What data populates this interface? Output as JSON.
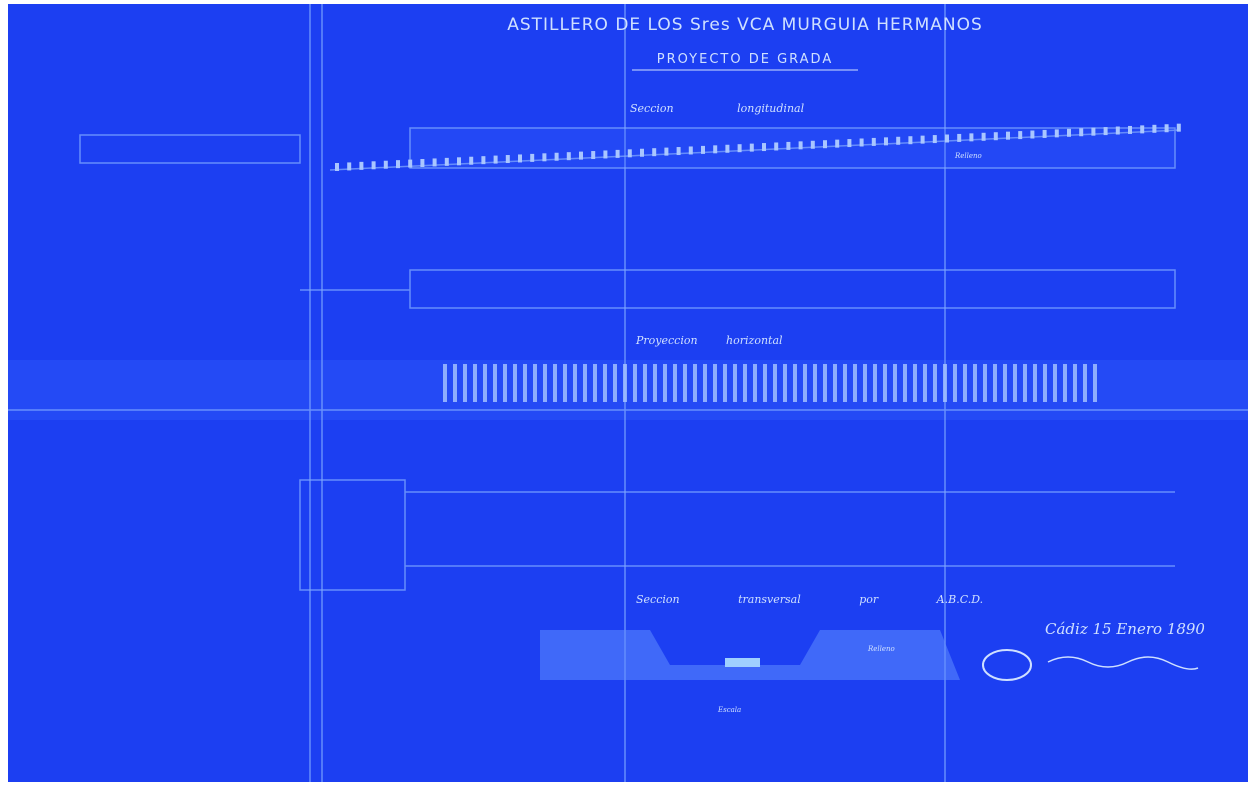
{
  "header": {
    "title": "ASTILLERO DE LOS Sres VCA MURGUIA HERMANOS",
    "subtitle": "PROYECTO DE GRADA"
  },
  "sections": [
    {
      "label": "Seccion longitudinal",
      "note": "Relleno"
    },
    {
      "label": "Proyeccion horizontal"
    },
    {
      "label": "Seccion transversal por A.B.C.D.",
      "note": "Relleno",
      "scale": "Escala"
    }
  ],
  "signature": {
    "date": "Cádiz 15 Enero 1890"
  }
}
